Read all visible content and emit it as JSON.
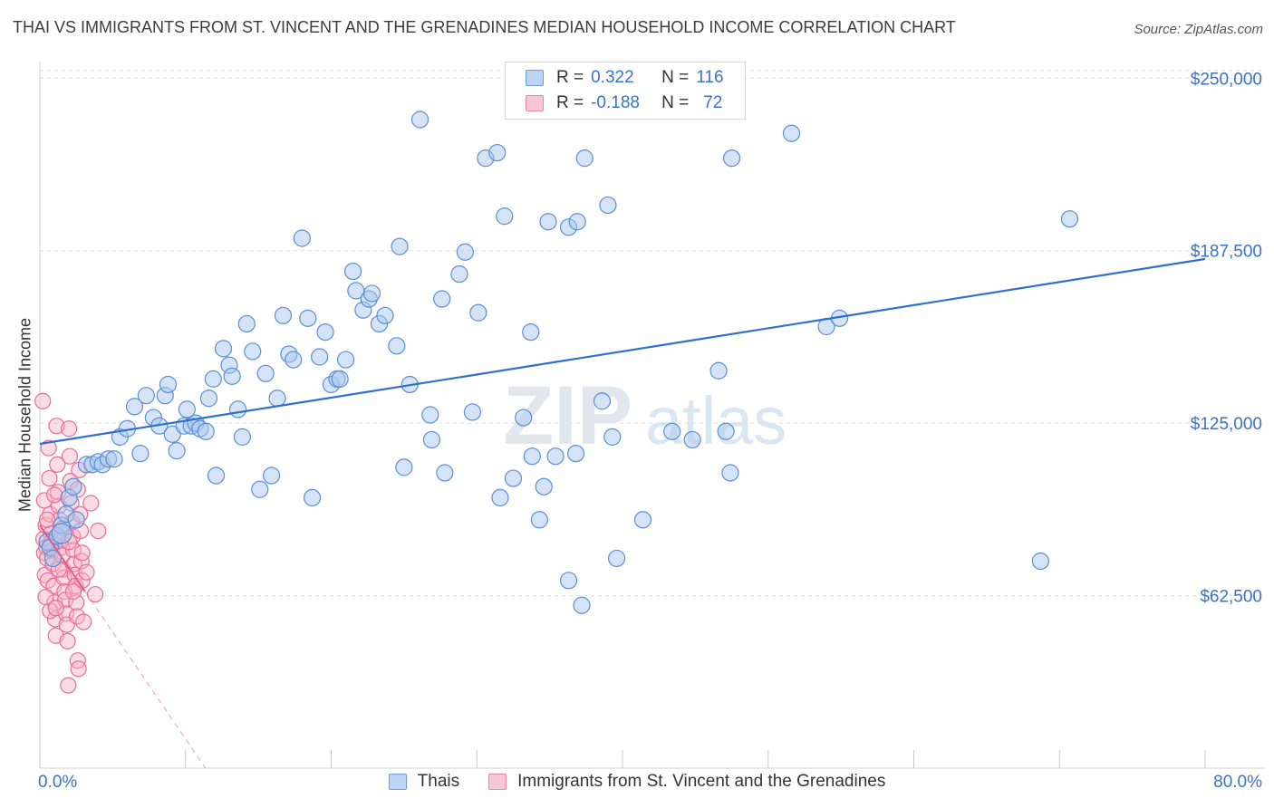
{
  "header": {
    "title": "THAI VS IMMIGRANTS FROM ST. VINCENT AND THE GRENADINES MEDIAN HOUSEHOLD INCOME CORRELATION CHART",
    "source": "Source: ZipAtlas.com"
  },
  "legend_top": {
    "rows": [
      {
        "r_label": "R =",
        "r_value": "0.322",
        "n_label": "N =",
        "n_value": "116"
      },
      {
        "r_label": "R =",
        "r_value": "-0.188",
        "n_label": "N =",
        "n_value": "72"
      }
    ]
  },
  "watermark": {
    "zip": "ZIP",
    "atlas": "atlas"
  },
  "colors": {
    "blue_fill": "#a9c7ee",
    "blue_stroke": "#5b8fd6",
    "blue_line": "#2f6fce",
    "pink_fill": "#f6b4c8",
    "pink_stroke": "#e86e98",
    "pink_line": "#e05a8a",
    "tick_text": "#3a73c8",
    "grid": "#dedede"
  },
  "chart_data": {
    "type": "scatter",
    "title": "THAI VS IMMIGRANTS FROM ST. VINCENT AND THE GRENADINES MEDIAN HOUSEHOLD INCOME CORRELATION CHART",
    "xlabel": "",
    "ylabel": "Median Household Income",
    "xlim": [
      0,
      80
    ],
    "ylim": [
      0,
      256000
    ],
    "x_tick_labels": [
      "0.0%",
      "80.0%"
    ],
    "y_ticks": [
      62500,
      125000,
      187500,
      250000
    ],
    "y_tick_labels": [
      "$62,500",
      "$125,000",
      "$187,500",
      "$250,000"
    ],
    "grid": true,
    "legend_position": "bottom",
    "series": [
      {
        "name": "Thais",
        "color": "#a9c7ee",
        "r": 0.322,
        "n": 116,
        "trend": {
          "x": [
            0,
            80
          ],
          "y": [
            117500,
            184500
          ]
        },
        "points": [
          [
            0.5,
            82000
          ],
          [
            0.7,
            80000
          ],
          [
            0.9,
            76000
          ],
          [
            1.2,
            84000
          ],
          [
            1.5,
            88000
          ],
          [
            1.8,
            92000
          ],
          [
            2.0,
            98000
          ],
          [
            2.3,
            102000
          ],
          [
            2.5,
            90000
          ],
          [
            3.2,
            110000
          ],
          [
            3.6,
            110000
          ],
          [
            4.0,
            111000
          ],
          [
            4.3,
            110000
          ],
          [
            4.7,
            112000
          ],
          [
            5.1,
            112000
          ],
          [
            5.5,
            120000
          ],
          [
            6.0,
            123000
          ],
          [
            6.5,
            131000
          ],
          [
            6.9,
            114000
          ],
          [
            7.3,
            135000
          ],
          [
            7.8,
            127000
          ],
          [
            8.2,
            124000
          ],
          [
            8.6,
            135000
          ],
          [
            8.8,
            139000
          ],
          [
            9.1,
            121000
          ],
          [
            9.4,
            115000
          ],
          [
            9.9,
            124000
          ],
          [
            10.1,
            130000
          ],
          [
            10.4,
            124000
          ],
          [
            10.7,
            125000
          ],
          [
            11.0,
            123000
          ],
          [
            11.4,
            122000
          ],
          [
            11.6,
            134000
          ],
          [
            11.9,
            141000
          ],
          [
            12.1,
            106000
          ],
          [
            12.6,
            152000
          ],
          [
            13.0,
            146000
          ],
          [
            13.2,
            142000
          ],
          [
            13.6,
            130000
          ],
          [
            13.9,
            120000
          ],
          [
            14.2,
            161000
          ],
          [
            14.6,
            151000
          ],
          [
            15.1,
            101000
          ],
          [
            15.5,
            143000
          ],
          [
            15.9,
            106000
          ],
          [
            16.3,
            134000
          ],
          [
            16.7,
            164000
          ],
          [
            17.1,
            150000
          ],
          [
            17.4,
            148000
          ],
          [
            18.0,
            192000
          ],
          [
            18.4,
            163000
          ],
          [
            18.7,
            98000
          ],
          [
            19.2,
            149000
          ],
          [
            19.6,
            158000
          ],
          [
            20.0,
            139000
          ],
          [
            20.4,
            141000
          ],
          [
            20.6,
            141000
          ],
          [
            21.0,
            148000
          ],
          [
            21.5,
            180000
          ],
          [
            21.7,
            173000
          ],
          [
            22.2,
            166000
          ],
          [
            22.6,
            170000
          ],
          [
            22.8,
            172000
          ],
          [
            23.3,
            161000
          ],
          [
            23.7,
            164000
          ],
          [
            24.5,
            153000
          ],
          [
            24.7,
            189000
          ],
          [
            25.0,
            109000
          ],
          [
            25.4,
            139000
          ],
          [
            26.1,
            235000
          ],
          [
            26.8,
            128000
          ],
          [
            26.9,
            119000
          ],
          [
            27.6,
            170000
          ],
          [
            27.8,
            107000
          ],
          [
            28.8,
            179000
          ],
          [
            29.2,
            187000
          ],
          [
            29.7,
            129000
          ],
          [
            30.1,
            165000
          ],
          [
            30.6,
            221000
          ],
          [
            31.4,
            223000
          ],
          [
            31.6,
            98000
          ],
          [
            31.9,
            200000
          ],
          [
            32.5,
            105000
          ],
          [
            33.2,
            127000
          ],
          [
            33.7,
            158000
          ],
          [
            33.8,
            113000
          ],
          [
            34.3,
            90000
          ],
          [
            34.6,
            102000
          ],
          [
            34.9,
            198000
          ],
          [
            35.4,
            113000
          ],
          [
            36.3,
            196000
          ],
          [
            36.8,
            114000
          ],
          [
            36.3,
            68000
          ],
          [
            37.2,
            59000
          ],
          [
            37.4,
            221000
          ],
          [
            36.9,
            198000
          ],
          [
            38.6,
            133000
          ],
          [
            39.0,
            204000
          ],
          [
            39.3,
            120000
          ],
          [
            39.6,
            76000
          ],
          [
            41.4,
            90000
          ],
          [
            43.4,
            122000
          ],
          [
            44.8,
            119000
          ],
          [
            46.6,
            144000
          ],
          [
            47.1,
            122000
          ],
          [
            47.4,
            107000
          ],
          [
            47.5,
            221000
          ],
          [
            51.6,
            230000
          ],
          [
            54.0,
            160000
          ],
          [
            54.9,
            163000
          ],
          [
            68.7,
            75000
          ],
          [
            70.7,
            199000
          ]
        ]
      },
      {
        "name": "Immigrants from St. Vincent and the Grenadines",
        "color": "#f6b4c8",
        "r": -0.188,
        "n": 72,
        "trend": {
          "x": [
            0,
            3.1
          ],
          "y": [
            88000,
            64000
          ]
        },
        "points": [
          [
            0.2,
            133000
          ],
          [
            0.25,
            83000
          ],
          [
            0.3,
            78000
          ],
          [
            0.35,
            70000
          ],
          [
            0.4,
            88000
          ],
          [
            0.45,
            80000
          ],
          [
            0.5,
            76000
          ],
          [
            0.55,
            68000
          ],
          [
            0.6,
            116000
          ],
          [
            0.65,
            105000
          ],
          [
            0.7,
            92000
          ],
          [
            0.75,
            85000
          ],
          [
            0.8,
            82000
          ],
          [
            0.85,
            79000
          ],
          [
            0.9,
            74000
          ],
          [
            0.95,
            66000
          ],
          [
            1.0,
            60000
          ],
          [
            1.05,
            54000
          ],
          [
            1.1,
            48000
          ],
          [
            1.15,
            124000
          ],
          [
            1.2,
            110000
          ],
          [
            1.25,
            100000
          ],
          [
            1.3,
            95000
          ],
          [
            1.35,
            90000
          ],
          [
            1.4,
            86000
          ],
          [
            1.45,
            83000
          ],
          [
            1.5,
            80000
          ],
          [
            1.55,
            77000
          ],
          [
            1.6,
            72000
          ],
          [
            1.65,
            69000
          ],
          [
            1.7,
            64000
          ],
          [
            1.75,
            61000
          ],
          [
            1.8,
            56000
          ],
          [
            1.85,
            52000
          ],
          [
            1.9,
            46000
          ],
          [
            1.95,
            30000
          ],
          [
            2.0,
            123000
          ],
          [
            2.05,
            113000
          ],
          [
            2.1,
            104000
          ],
          [
            2.15,
            96000
          ],
          [
            2.2,
            89000
          ],
          [
            2.25,
            84000
          ],
          [
            2.3,
            79000
          ],
          [
            2.35,
            74000
          ],
          [
            2.4,
            70000
          ],
          [
            2.45,
            66000
          ],
          [
            2.5,
            60000
          ],
          [
            2.55,
            55000
          ],
          [
            2.6,
            39000
          ],
          [
            2.65,
            36000
          ],
          [
            2.7,
            108000
          ],
          [
            2.75,
            92000
          ],
          [
            2.8,
            86000
          ],
          [
            2.85,
            75000
          ],
          [
            2.9,
            68000
          ],
          [
            3.0,
            53000
          ],
          [
            0.3,
            97000
          ],
          [
            0.5,
            90000
          ],
          [
            0.7,
            57000
          ],
          [
            1.0,
            99000
          ],
          [
            1.3,
            72000
          ],
          [
            1.6,
            87000
          ],
          [
            2.0,
            82000
          ],
          [
            2.3,
            64000
          ],
          [
            2.6,
            101000
          ],
          [
            2.9,
            78000
          ],
          [
            3.2,
            71000
          ],
          [
            3.5,
            96000
          ],
          [
            3.8,
            63000
          ],
          [
            4.0,
            86000
          ],
          [
            0.4,
            62000
          ],
          [
            1.1,
            58000
          ]
        ]
      }
    ]
  }
}
